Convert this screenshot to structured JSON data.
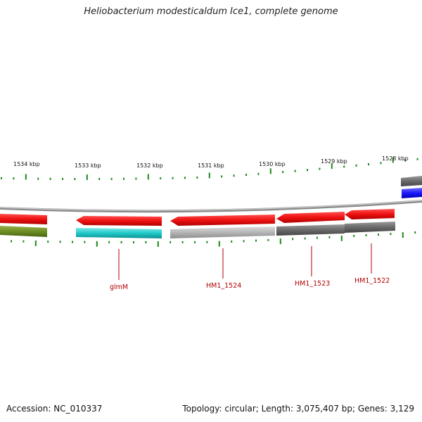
{
  "title": "Heliobacterium modesticaldum Ice1, complete genome",
  "footer": {
    "accession": "Accession: NC_010337",
    "summary": "Topology: circular; Length: 3,075,407 bp; Genes: 3,129"
  },
  "scale_labels": [
    "1534 kbp",
    "1533 kbp",
    "1532 kbp",
    "1531 kbp",
    "1530 kbp",
    "1529 kbp",
    "1528 kbp"
  ],
  "gene_labels": [
    "glmM",
    "HM1_1524",
    "HM1_1523",
    "HM1_1522"
  ],
  "colors": {
    "backbone": "#8a8a8a",
    "forward_red": "#ee1111",
    "olive": "#6b8e23",
    "cyan": "#20c8c8",
    "light_gray": "#b5b5b5",
    "dark_gray": "#6a6a6a",
    "blue": "#1a1aff",
    "tick_green": "#1a8a1a",
    "label_red": "#b30000"
  }
}
